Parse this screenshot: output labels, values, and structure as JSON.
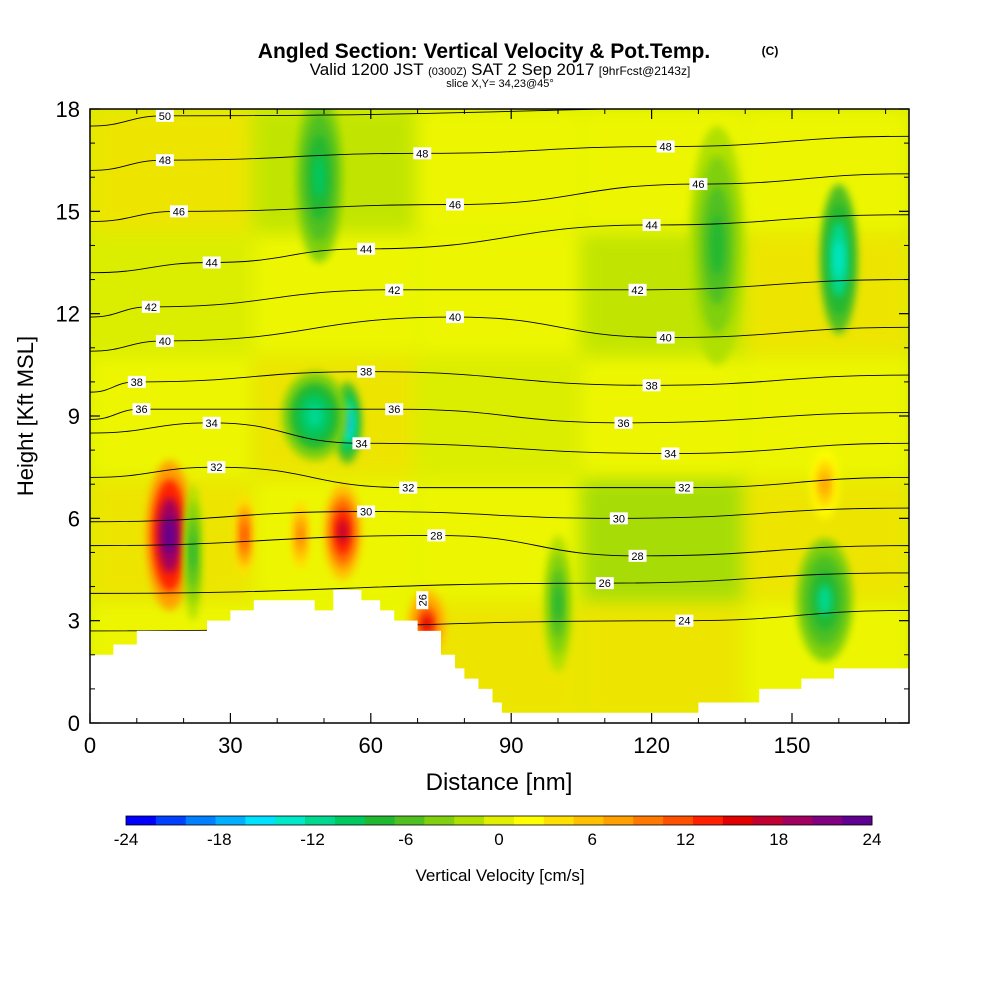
{
  "chart_data": {
    "type": "heatmap",
    "title": "Angled Section: Vertical Velocity & Pot.Temp.",
    "title_mark": "(C)",
    "subtitle": {
      "valid": "Valid 1200 JST",
      "utc": "(0300Z)",
      "date": "SAT 2 Sep 2017",
      "forecast": "[9hrFcst@2143z]"
    },
    "slice_label": "slice X,Y= 34,23@45°",
    "xlabel": "Distance [nm]",
    "ylabel": "Height [Kft MSL]",
    "xlim": [
      0,
      175
    ],
    "ylim": [
      0,
      18
    ],
    "x_ticks": [
      0,
      30,
      60,
      90,
      120,
      150
    ],
    "y_ticks": [
      0,
      3,
      6,
      9,
      12,
      15,
      18
    ],
    "colorbar": {
      "label": "Vertical Velocity [cm/s]",
      "range": [
        -24,
        24
      ],
      "tick_values": [
        -24,
        -18,
        -12,
        -6,
        0,
        6,
        12,
        18,
        24
      ],
      "colors": [
        "#0000ff",
        "#0040ff",
        "#0080ff",
        "#00b0ff",
        "#00e0ff",
        "#00e8c8",
        "#00d890",
        "#00c860",
        "#20b830",
        "#50c020",
        "#80d010",
        "#b0e000",
        "#e0f000",
        "#ffff00",
        "#ffe000",
        "#ffc000",
        "#ffa000",
        "#ff7800",
        "#ff5000",
        "#ff2000",
        "#e00000",
        "#c00030",
        "#a00060",
        "#800080",
        "#600090"
      ]
    },
    "terrain": [
      [
        0,
        2
      ],
      [
        5,
        2
      ],
      [
        5,
        2.3
      ],
      [
        10,
        2.3
      ],
      [
        10,
        2.7
      ],
      [
        25,
        2.7
      ],
      [
        25,
        3
      ],
      [
        30,
        3
      ],
      [
        30,
        3.3
      ],
      [
        35,
        3.3
      ],
      [
        35,
        3.6
      ],
      [
        48,
        3.6
      ],
      [
        48,
        3.3
      ],
      [
        52,
        3.3
      ],
      [
        52,
        3.9
      ],
      [
        58,
        3.9
      ],
      [
        58,
        3.6
      ],
      [
        62,
        3.6
      ],
      [
        62,
        3.3
      ],
      [
        65,
        3.3
      ],
      [
        65,
        3
      ],
      [
        70,
        3
      ],
      [
        70,
        2.7
      ],
      [
        75,
        2.7
      ],
      [
        75,
        2
      ],
      [
        78,
        2
      ],
      [
        78,
        1.6
      ],
      [
        80,
        1.6
      ],
      [
        80,
        1.3
      ],
      [
        83,
        1.3
      ],
      [
        83,
        1
      ],
      [
        86,
        1
      ],
      [
        86,
        0.6
      ],
      [
        88,
        0.6
      ],
      [
        88,
        0.3
      ],
      [
        130,
        0.3
      ],
      [
        130,
        0.6
      ],
      [
        143,
        0.6
      ],
      [
        143,
        1
      ],
      [
        152,
        1
      ],
      [
        152,
        1.3
      ],
      [
        159,
        1.3
      ],
      [
        159,
        1.6
      ],
      [
        175,
        1.6
      ]
    ],
    "isentropes": [
      {
        "value": "24",
        "label_x": 127,
        "label_y": 3
      },
      {
        "value": "26",
        "label_x": 110,
        "label_y": 4.1
      },
      {
        "value": "26",
        "label_x": 71,
        "label_y": 3.6,
        "rotated": true
      },
      {
        "value": "28",
        "label_x": 74,
        "label_y": 5.5
      },
      {
        "value": "28",
        "label_x": 117,
        "label_y": 4.9
      },
      {
        "value": "30",
        "label_x": 59,
        "label_y": 6.2
      },
      {
        "value": "30",
        "label_x": 113,
        "label_y": 6
      },
      {
        "value": "32",
        "label_x": 27,
        "label_y": 7.5
      },
      {
        "value": "32",
        "label_x": 68,
        "label_y": 6.9
      },
      {
        "value": "32",
        "label_x": 127,
        "label_y": 6.9
      },
      {
        "value": "34",
        "label_x": 26,
        "label_y": 8.8
      },
      {
        "value": "34",
        "label_x": 58,
        "label_y": 8.2
      },
      {
        "value": "34",
        "label_x": 124,
        "label_y": 7.9
      },
      {
        "value": "36",
        "label_x": 11,
        "label_y": 9.2
      },
      {
        "value": "36",
        "label_x": 65,
        "label_y": 9.2
      },
      {
        "value": "36",
        "label_x": 114,
        "label_y": 8.8
      },
      {
        "value": "38",
        "label_x": 10,
        "label_y": 10
      },
      {
        "value": "38",
        "label_x": 59,
        "label_y": 10.3
      },
      {
        "value": "38",
        "label_x": 120,
        "label_y": 9.9
      },
      {
        "value": "40",
        "label_x": 16,
        "label_y": 11.2
      },
      {
        "value": "40",
        "label_x": 78,
        "label_y": 11.9
      },
      {
        "value": "40",
        "label_x": 123,
        "label_y": 11.3
      },
      {
        "value": "42",
        "label_x": 13,
        "label_y": 12.2
      },
      {
        "value": "42",
        "label_x": 65,
        "label_y": 12.7
      },
      {
        "value": "42",
        "label_x": 117,
        "label_y": 12.7
      },
      {
        "value": "44",
        "label_x": 26,
        "label_y": 13.5
      },
      {
        "value": "44",
        "label_x": 59,
        "label_y": 13.9
      },
      {
        "value": "44",
        "label_x": 120,
        "label_y": 14.6
      },
      {
        "value": "46",
        "label_x": 19,
        "label_y": 15
      },
      {
        "value": "46",
        "label_x": 78,
        "label_y": 15.2
      },
      {
        "value": "46",
        "label_x": 130,
        "label_y": 15.8
      },
      {
        "value": "48",
        "label_x": 16,
        "label_y": 16.5
      },
      {
        "value": "48",
        "label_x": 71,
        "label_y": 16.7
      },
      {
        "value": "48",
        "label_x": 123,
        "label_y": 16.9
      },
      {
        "value": "50",
        "label_x": 16,
        "label_y": 17.8
      }
    ],
    "features": [
      {
        "kind": "updraft",
        "x": 17,
        "y": 5.5,
        "w": 5,
        "h": 2.2,
        "peak": 24
      },
      {
        "kind": "updraft",
        "x": 54,
        "y": 5.6,
        "w": 4,
        "h": 1.4,
        "peak": 18
      },
      {
        "kind": "updraft",
        "x": 72,
        "y": 2.9,
        "w": 4,
        "h": 1,
        "peak": 15
      },
      {
        "kind": "updraft",
        "x": 33,
        "y": 5.5,
        "w": 2,
        "h": 1.2,
        "peak": 12
      },
      {
        "kind": "updraft",
        "x": 45,
        "y": 5.5,
        "w": 2,
        "h": 1,
        "peak": 10
      },
      {
        "kind": "updraft",
        "x": 157,
        "y": 7,
        "w": 3,
        "h": 1,
        "peak": 8
      },
      {
        "kind": "downdraft",
        "x": 55,
        "y": 8.8,
        "w": 3,
        "h": 1.2,
        "peak": -18
      },
      {
        "kind": "downdraft",
        "x": 48,
        "y": 9,
        "w": 7,
        "h": 1.3,
        "peak": -12
      },
      {
        "kind": "downdraft",
        "x": 160,
        "y": 13.6,
        "w": 4,
        "h": 2.2,
        "peak": -14
      },
      {
        "kind": "downdraft",
        "x": 157,
        "y": 3.6,
        "w": 6,
        "h": 1.8,
        "peak": -11
      },
      {
        "kind": "downdraft",
        "x": 22,
        "y": 5,
        "w": 2,
        "h": 2,
        "peak": -8
      },
      {
        "kind": "downdraft",
        "x": 49,
        "y": 16,
        "w": 5,
        "h": 2.5,
        "peak": -9
      },
      {
        "kind": "downdraft",
        "x": 134,
        "y": 14,
        "w": 6,
        "h": 3.5,
        "peak": -8
      },
      {
        "kind": "downdraft",
        "x": 100,
        "y": 3.5,
        "w": 3,
        "h": 2,
        "peak": -8
      }
    ]
  }
}
